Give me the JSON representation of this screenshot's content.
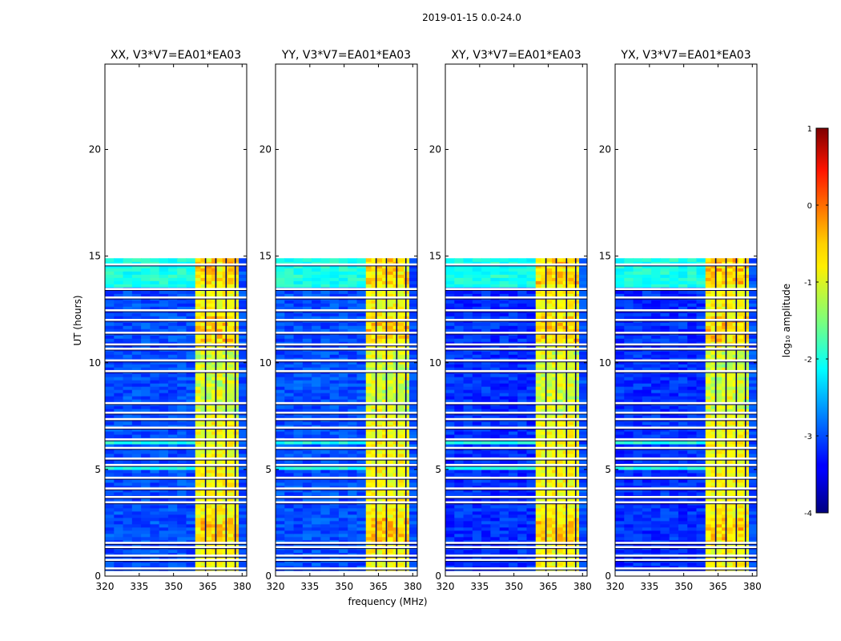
{
  "chart_data": {
    "type": "heatmap",
    "suptitle": "2019-01-15 0.0-24.0",
    "xlabel": "frequency (MHz)",
    "ylabel": "UT (hours)",
    "xlim": [
      320,
      382
    ],
    "ylim": [
      0,
      24
    ],
    "x_ticks": [
      320,
      335,
      350,
      365,
      380
    ],
    "y_ticks": [
      0,
      5,
      10,
      15,
      20
    ],
    "data_time_range_hours": [
      0.2,
      14.9
    ],
    "strong_band_mhz": [
      359.5,
      378.5
    ],
    "band_gaps_mhz": [
      364,
      368.5,
      373,
      377
    ],
    "panels": [
      {
        "title": "XX, V3*V7=EA01*EA03",
        "pol": "XX"
      },
      {
        "title": "YY, V3*V7=EA01*EA03",
        "pol": "YY"
      },
      {
        "title": "XY, V3*V7=EA01*EA03",
        "pol": "XY"
      },
      {
        "title": "YX, V3*V7=EA01*EA03",
        "pol": "YX"
      }
    ],
    "colorbar": {
      "label": "log₁₀ amplitude",
      "min": -4,
      "max": 1,
      "ticks": [
        1,
        0,
        -1,
        -2,
        -3,
        -4
      ],
      "colormap": "jet"
    },
    "flagged_rows_hours": [
      0.35,
      0.75,
      0.95,
      1.35,
      1.55,
      3.45,
      3.7,
      4.1,
      4.6,
      5.2,
      5.5,
      6.0,
      6.4,
      6.95,
      7.35,
      7.65,
      8.1,
      9.6,
      10.1,
      10.65,
      10.85,
      11.4,
      12.0,
      12.45,
      13.05,
      13.45,
      14.6
    ],
    "colors": {
      "axis": "#000000",
      "background": "#ffffff",
      "noise_floor": "#0a28ff",
      "quiet_rows": "#00c8ff",
      "band_level": "#e6ff30",
      "band_hot": "#ff8000"
    }
  }
}
